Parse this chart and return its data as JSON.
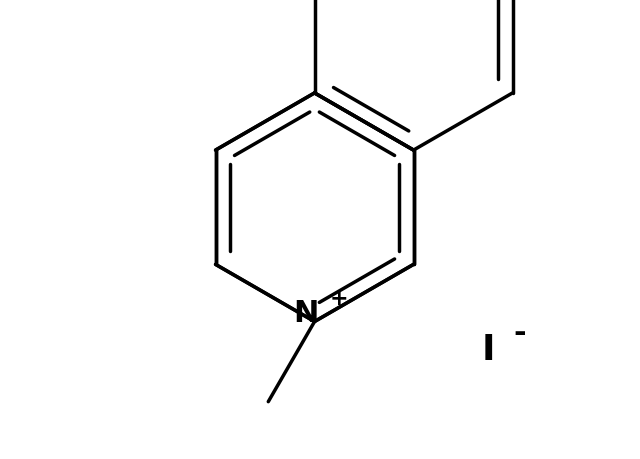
{
  "bg_color": "#ffffff",
  "line_color": "#000000",
  "line_width": 2.5,
  "figsize": [
    6.4,
    4.6
  ],
  "dpi": 100
}
